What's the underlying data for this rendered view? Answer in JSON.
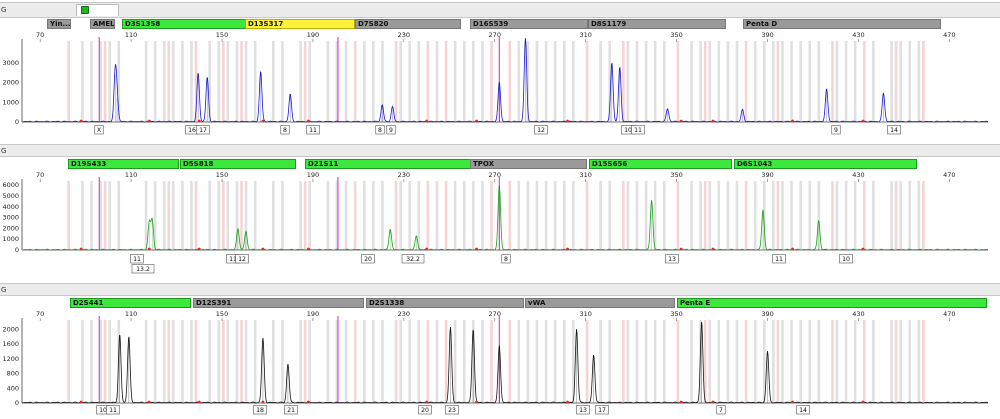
{
  "panels": [
    {
      "id": "blue",
      "panel_letter": "G",
      "color": "#1a1acc",
      "loci": [
        {
          "label": "Yin...",
          "color": "grey"
        },
        {
          "label": "AMEL",
          "color": "grey"
        },
        {
          "label": "D3S1358",
          "color": "green"
        },
        {
          "label": "D13S317",
          "color": "yellow"
        },
        {
          "label": "D7S820",
          "color": "grey"
        },
        {
          "label": "D16S539",
          "color": "grey"
        },
        {
          "label": "D8S1179",
          "color": "grey"
        },
        {
          "label": "Penta D",
          "color": "grey"
        }
      ],
      "x_ticks": [
        "70",
        "110",
        "150",
        "190",
        "230",
        "270",
        "310",
        "350",
        "390",
        "430",
        "470"
      ],
      "y_ticks": [
        "0",
        "1000",
        "2000",
        "3000"
      ],
      "y_max": 4000,
      "peaks": [
        {
          "size": 103.0,
          "height": 2400
        },
        {
          "size": 103.8,
          "height": 1200
        },
        {
          "size": 139.5,
          "height": 2450
        },
        {
          "size": 143.5,
          "height": 2250
        },
        {
          "size": 167.0,
          "height": 2550
        },
        {
          "size": 180.0,
          "height": 1400
        },
        {
          "size": 220.5,
          "height": 850
        },
        {
          "size": 225.0,
          "height": 750
        },
        {
          "size": 272.0,
          "height": 2000
        },
        {
          "size": 283.5,
          "height": 4200
        },
        {
          "size": 321.5,
          "height": 3000
        },
        {
          "size": 325.0,
          "height": 2750
        },
        {
          "size": 346.0,
          "height": 650
        },
        {
          "size": 379.0,
          "height": 600
        },
        {
          "size": 416.0,
          "height": 1650
        },
        {
          "size": 441.0,
          "height": 1450
        }
      ],
      "allele_labels": [
        "X",
        "16",
        "17",
        "8",
        "11",
        "8",
        "9",
        "12",
        "10",
        "11",
        "9",
        "14"
      ]
    },
    {
      "id": "green",
      "panel_letter": "G",
      "color": "#1b9e1b",
      "loci": [
        {
          "label": "D19S433",
          "color": "green"
        },
        {
          "label": "D5S818",
          "color": "green"
        },
        {
          "label": "D21S11",
          "color": "green"
        },
        {
          "label": "TPOX",
          "color": "grey"
        },
        {
          "label": "D15S656",
          "color": "green"
        },
        {
          "label": "D6S1043",
          "color": "green"
        }
      ],
      "x_ticks": [
        "70",
        "110",
        "150",
        "190",
        "230",
        "270",
        "310",
        "350",
        "390",
        "430",
        "470"
      ],
      "y_ticks": [
        "0",
        "1000",
        "2000",
        "3000",
        "4000",
        "5000",
        "6000"
      ],
      "y_max": 6200,
      "peaks": [
        {
          "size": 118.0,
          "height": 2500
        },
        {
          "size": 119.3,
          "height": 2700
        },
        {
          "size": 157.0,
          "height": 1950
        },
        {
          "size": 160.5,
          "height": 1700
        },
        {
          "size": 224.0,
          "height": 1900
        },
        {
          "size": 235.5,
          "height": 1300
        },
        {
          "size": 272.0,
          "height": 6000
        },
        {
          "size": 339.0,
          "height": 4600
        },
        {
          "size": 388.0,
          "height": 3700
        },
        {
          "size": 412.5,
          "height": 2700
        }
      ],
      "allele_labels": [
        "11",
        "13.2",
        "11",
        "12",
        "20",
        "32.2",
        "8",
        "13",
        "11",
        "10"
      ]
    },
    {
      "id": "black",
      "panel_letter": "G",
      "color": "#151515",
      "loci": [
        {
          "label": "D2S441",
          "color": "green"
        },
        {
          "label": "D12S391",
          "color": "grey"
        },
        {
          "label": "D2S1338",
          "color": "grey"
        },
        {
          "label": "vWA",
          "color": "grey"
        },
        {
          "label": "Penta E",
          "color": "green"
        }
      ],
      "x_ticks": [
        "70",
        "110",
        "150",
        "190",
        "230",
        "270",
        "310",
        "350",
        "390",
        "430",
        "470"
      ],
      "y_ticks": [
        "0",
        "400",
        "800",
        "1200",
        "1600",
        "2000"
      ],
      "y_max": 2200,
      "peaks": [
        {
          "size": 105.0,
          "height": 1850
        },
        {
          "size": 109.0,
          "height": 1800
        },
        {
          "size": 168.0,
          "height": 1750
        },
        {
          "size": 179.0,
          "height": 1050
        },
        {
          "size": 250.5,
          "height": 2050
        },
        {
          "size": 260.5,
          "height": 2000
        },
        {
          "size": 272.0,
          "height": 1550
        },
        {
          "size": 306.0,
          "height": 2000
        },
        {
          "size": 313.5,
          "height": 1300
        },
        {
          "size": 361.0,
          "height": 2200
        },
        {
          "size": 390.0,
          "height": 1400
        }
      ],
      "allele_labels": [
        "10",
        "11",
        "18",
        "21",
        "20",
        "23",
        "13",
        "17",
        "7",
        "14"
      ]
    }
  ]
}
